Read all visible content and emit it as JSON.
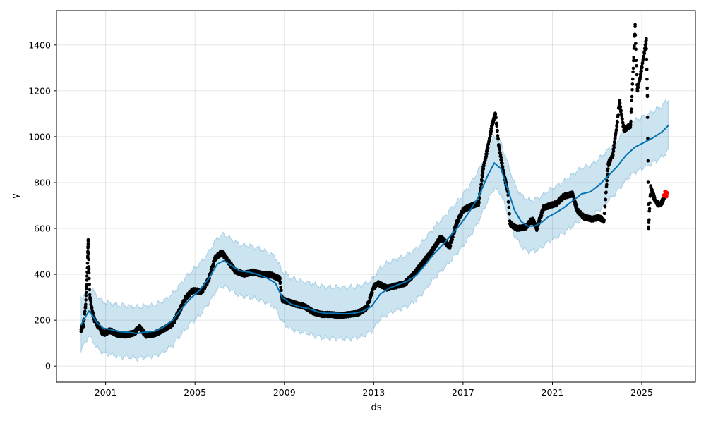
{
  "chart_data": {
    "type": "scatter",
    "xlabel": "ds",
    "ylabel": "y",
    "x_ticks": [
      2001,
      2005,
      2009,
      2013,
      2017,
      2021,
      2025
    ],
    "y_ticks": [
      0,
      200,
      400,
      600,
      800,
      1000,
      1200,
      1400
    ],
    "xlim": [
      1998.8,
      2027.4
    ],
    "ylim": [
      -70,
      1550
    ],
    "grid": true,
    "colors": {
      "observed": "#000000",
      "forecast": "#0072B2",
      "uncertainty": "#0072B2",
      "highlight": "#FF0000"
    },
    "series": [
      {
        "kind": "forecast_line",
        "points": [
          [
            1999.9,
            178
          ],
          [
            2000.1,
            215
          ],
          [
            2000.25,
            240
          ],
          [
            2000.4,
            222
          ],
          [
            2000.6,
            190
          ],
          [
            2000.9,
            165
          ],
          [
            2001.2,
            160
          ],
          [
            2001.6,
            150
          ],
          [
            2002.0,
            148
          ],
          [
            2002.4,
            142
          ],
          [
            2002.8,
            148
          ],
          [
            2003.2,
            152
          ],
          [
            2003.6,
            170
          ],
          [
            2004.0,
            200
          ],
          [
            2004.4,
            250
          ],
          [
            2004.8,
            295
          ],
          [
            2005.2,
            330
          ],
          [
            2005.6,
            380
          ],
          [
            2006.0,
            445
          ],
          [
            2006.3,
            460
          ],
          [
            2006.6,
            440
          ],
          [
            2007.0,
            415
          ],
          [
            2007.4,
            410
          ],
          [
            2007.8,
            400
          ],
          [
            2008.2,
            385
          ],
          [
            2008.6,
            362
          ],
          [
            2008.9,
            300
          ],
          [
            2009.3,
            270
          ],
          [
            2009.7,
            258
          ],
          [
            2010.1,
            250
          ],
          [
            2010.5,
            236
          ],
          [
            2010.9,
            230
          ],
          [
            2011.3,
            230
          ],
          [
            2011.7,
            228
          ],
          [
            2012.1,
            230
          ],
          [
            2012.5,
            238
          ],
          [
            2012.9,
            260
          ],
          [
            2013.3,
            315
          ],
          [
            2013.7,
            340
          ],
          [
            2014.1,
            355
          ],
          [
            2014.5,
            370
          ],
          [
            2014.9,
            395
          ],
          [
            2015.3,
            440
          ],
          [
            2015.7,
            490
          ],
          [
            2016.1,
            530
          ],
          [
            2016.5,
            575
          ],
          [
            2016.9,
            620
          ],
          [
            2017.3,
            675
          ],
          [
            2017.7,
            740
          ],
          [
            2018.1,
            830
          ],
          [
            2018.4,
            885
          ],
          [
            2018.7,
            860
          ],
          [
            2019.0,
            770
          ],
          [
            2019.3,
            680
          ],
          [
            2019.6,
            630
          ],
          [
            2019.9,
            610
          ],
          [
            2020.2,
            610
          ],
          [
            2020.5,
            625
          ],
          [
            2020.8,
            650
          ],
          [
            2021.1,
            665
          ],
          [
            2021.5,
            690
          ],
          [
            2021.9,
            720
          ],
          [
            2022.3,
            750
          ],
          [
            2022.7,
            760
          ],
          [
            2023.1,
            790
          ],
          [
            2023.5,
            830
          ],
          [
            2023.9,
            870
          ],
          [
            2024.3,
            920
          ],
          [
            2024.7,
            955
          ],
          [
            2025.1,
            975
          ],
          [
            2025.5,
            995
          ],
          [
            2025.9,
            1020
          ],
          [
            2026.2,
            1050
          ]
        ]
      },
      {
        "kind": "observed",
        "points": [
          [
            1999.9,
            160
          ],
          [
            2000.0,
            180
          ],
          [
            2000.1,
            260
          ],
          [
            2000.15,
            345
          ],
          [
            2000.2,
            480
          ],
          [
            2000.22,
            545
          ],
          [
            2000.25,
            420
          ],
          [
            2000.3,
            300
          ],
          [
            2000.4,
            240
          ],
          [
            2000.5,
            200
          ],
          [
            2000.7,
            170
          ],
          [
            2000.9,
            140
          ],
          [
            2001.2,
            155
          ],
          [
            2001.5,
            140
          ],
          [
            2001.9,
            135
          ],
          [
            2002.3,
            145
          ],
          [
            2002.5,
            170
          ],
          [
            2002.8,
            135
          ],
          [
            2003.2,
            140
          ],
          [
            2003.6,
            160
          ],
          [
            2004.0,
            185
          ],
          [
            2004.3,
            240
          ],
          [
            2004.6,
            300
          ],
          [
            2004.9,
            330
          ],
          [
            2005.3,
            325
          ],
          [
            2005.6,
            375
          ],
          [
            2005.9,
            470
          ],
          [
            2006.2,
            495
          ],
          [
            2006.5,
            455
          ],
          [
            2006.8,
            415
          ],
          [
            2007.2,
            400
          ],
          [
            2007.6,
            410
          ],
          [
            2008.0,
            400
          ],
          [
            2008.4,
            398
          ],
          [
            2008.8,
            380
          ],
          [
            2008.9,
            290
          ],
          [
            2009.2,
            280
          ],
          [
            2009.5,
            270
          ],
          [
            2009.9,
            260
          ],
          [
            2010.3,
            235
          ],
          [
            2010.7,
            225
          ],
          [
            2011.1,
            225
          ],
          [
            2011.5,
            220
          ],
          [
            2011.9,
            225
          ],
          [
            2012.3,
            230
          ],
          [
            2012.7,
            255
          ],
          [
            2013.0,
            345
          ],
          [
            2013.2,
            360
          ],
          [
            2013.6,
            340
          ],
          [
            2014.0,
            350
          ],
          [
            2014.4,
            360
          ],
          [
            2014.8,
            400
          ],
          [
            2015.2,
            450
          ],
          [
            2015.6,
            500
          ],
          [
            2016.0,
            560
          ],
          [
            2016.4,
            520
          ],
          [
            2016.7,
            620
          ],
          [
            2017.0,
            680
          ],
          [
            2017.4,
            700
          ],
          [
            2017.7,
            710
          ],
          [
            2017.9,
            860
          ],
          [
            2018.1,
            950
          ],
          [
            2018.3,
            1050
          ],
          [
            2018.45,
            1100
          ],
          [
            2018.6,
            960
          ],
          [
            2018.8,
            850
          ],
          [
            2019.0,
            760
          ],
          [
            2019.1,
            620
          ],
          [
            2019.4,
            600
          ],
          [
            2019.8,
            605
          ],
          [
            2020.1,
            640
          ],
          [
            2020.3,
            600
          ],
          [
            2020.6,
            690
          ],
          [
            2020.9,
            700
          ],
          [
            2021.2,
            710
          ],
          [
            2021.5,
            740
          ],
          [
            2021.9,
            750
          ],
          [
            2022.1,
            680
          ],
          [
            2022.4,
            650
          ],
          [
            2022.8,
            640
          ],
          [
            2023.1,
            650
          ],
          [
            2023.3,
            630
          ],
          [
            2023.5,
            880
          ],
          [
            2023.7,
            920
          ],
          [
            2023.9,
            1060
          ],
          [
            2024.0,
            1150
          ],
          [
            2024.2,
            1030
          ],
          [
            2024.5,
            1050
          ],
          [
            2024.7,
            1480
          ],
          [
            2024.8,
            1200
          ],
          [
            2025.0,
            1300
          ],
          [
            2025.2,
            1420
          ],
          [
            2025.25,
            1180
          ],
          [
            2025.3,
            600
          ],
          [
            2025.4,
            780
          ],
          [
            2025.6,
            720
          ],
          [
            2025.8,
            700
          ],
          [
            2026.0,
            730
          ]
        ]
      },
      {
        "kind": "highlight",
        "points": [
          [
            2026.0,
            745
          ],
          [
            2026.05,
            760
          ],
          [
            2026.1,
            740
          ],
          [
            2026.12,
            755
          ]
        ]
      }
    ]
  }
}
